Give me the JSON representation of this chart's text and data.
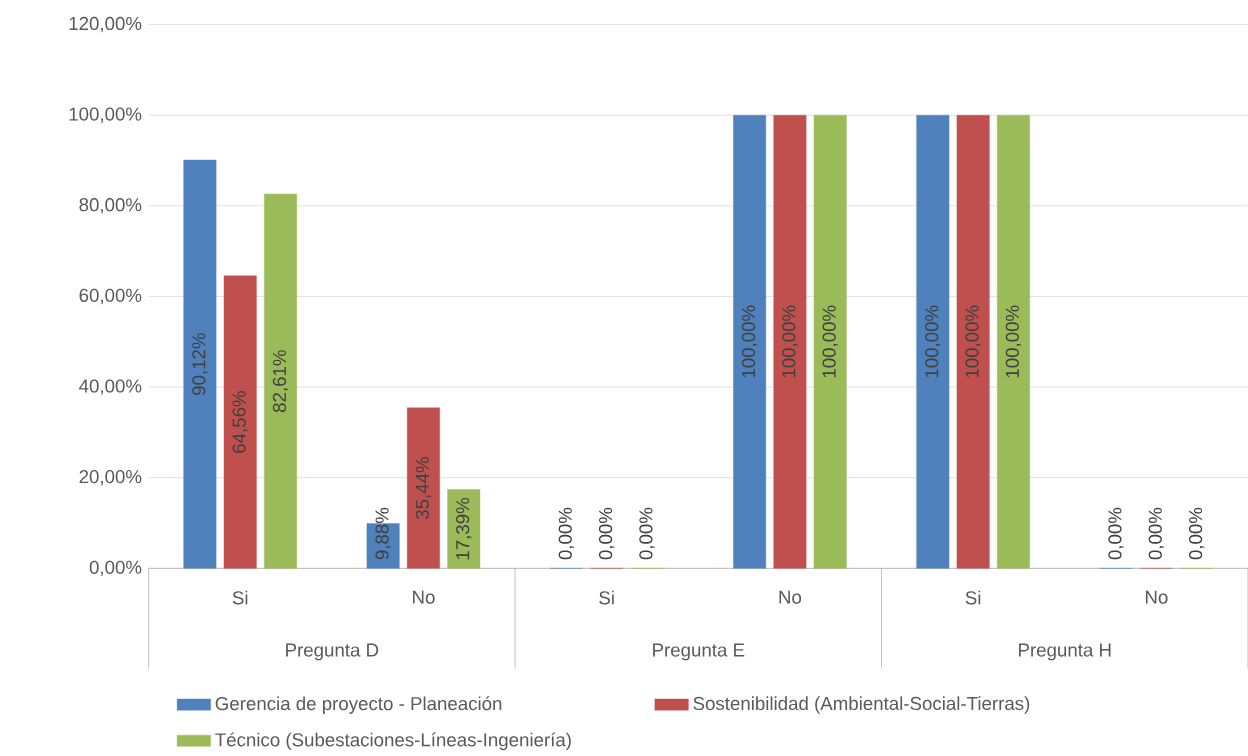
{
  "chart_data": {
    "type": "bar",
    "categories": [
      "Si",
      "No",
      "Si",
      "No",
      "Si",
      "No"
    ],
    "annotations": [
      "Pregunta D",
      "Pregunta E",
      "Pregunta H"
    ],
    "series": [
      {
        "name": "Gerencia de proyecto - Planeación",
        "color": "#4f81bd",
        "values": [
          90.12,
          9.88,
          0,
          100,
          100,
          0
        ],
        "value_labels": [
          "90,12%",
          "9,88%",
          "0,00%",
          "100,00%",
          "100,00%",
          "0,00%"
        ]
      },
      {
        "name": "Sostenibilidad (Ambiental-Social-Tierras)",
        "color": "#c0504d",
        "values": [
          64.56,
          35.44,
          0,
          100,
          100,
          0
        ],
        "value_labels": [
          "64,56%",
          "35,44%",
          "0,00%",
          "100,00%",
          "100,00%",
          "0,00%"
        ]
      },
      {
        "name": "Técnico (Subestaciones-Líneas-Ingeniería)",
        "color": "#9bbb59",
        "values": [
          82.61,
          17.39,
          0,
          100,
          100,
          0
        ],
        "value_labels": [
          "82,61%",
          "17,39%",
          "0,00%",
          "100,00%",
          "100,00%",
          "0,00%"
        ]
      }
    ],
    "ylim": [
      0,
      120
    ],
    "yticks": [
      {
        "value": 0,
        "label": "0,00%"
      },
      {
        "value": 20,
        "label": "20,00%"
      },
      {
        "value": 40,
        "label": "40,00%"
      },
      {
        "value": 60,
        "label": "60,00%"
      },
      {
        "value": 80,
        "label": "80,00%"
      },
      {
        "value": 100,
        "label": "100,00%"
      },
      {
        "value": 120,
        "label": "120,00%"
      }
    ],
    "grid": "y",
    "legend": "bottom"
  }
}
